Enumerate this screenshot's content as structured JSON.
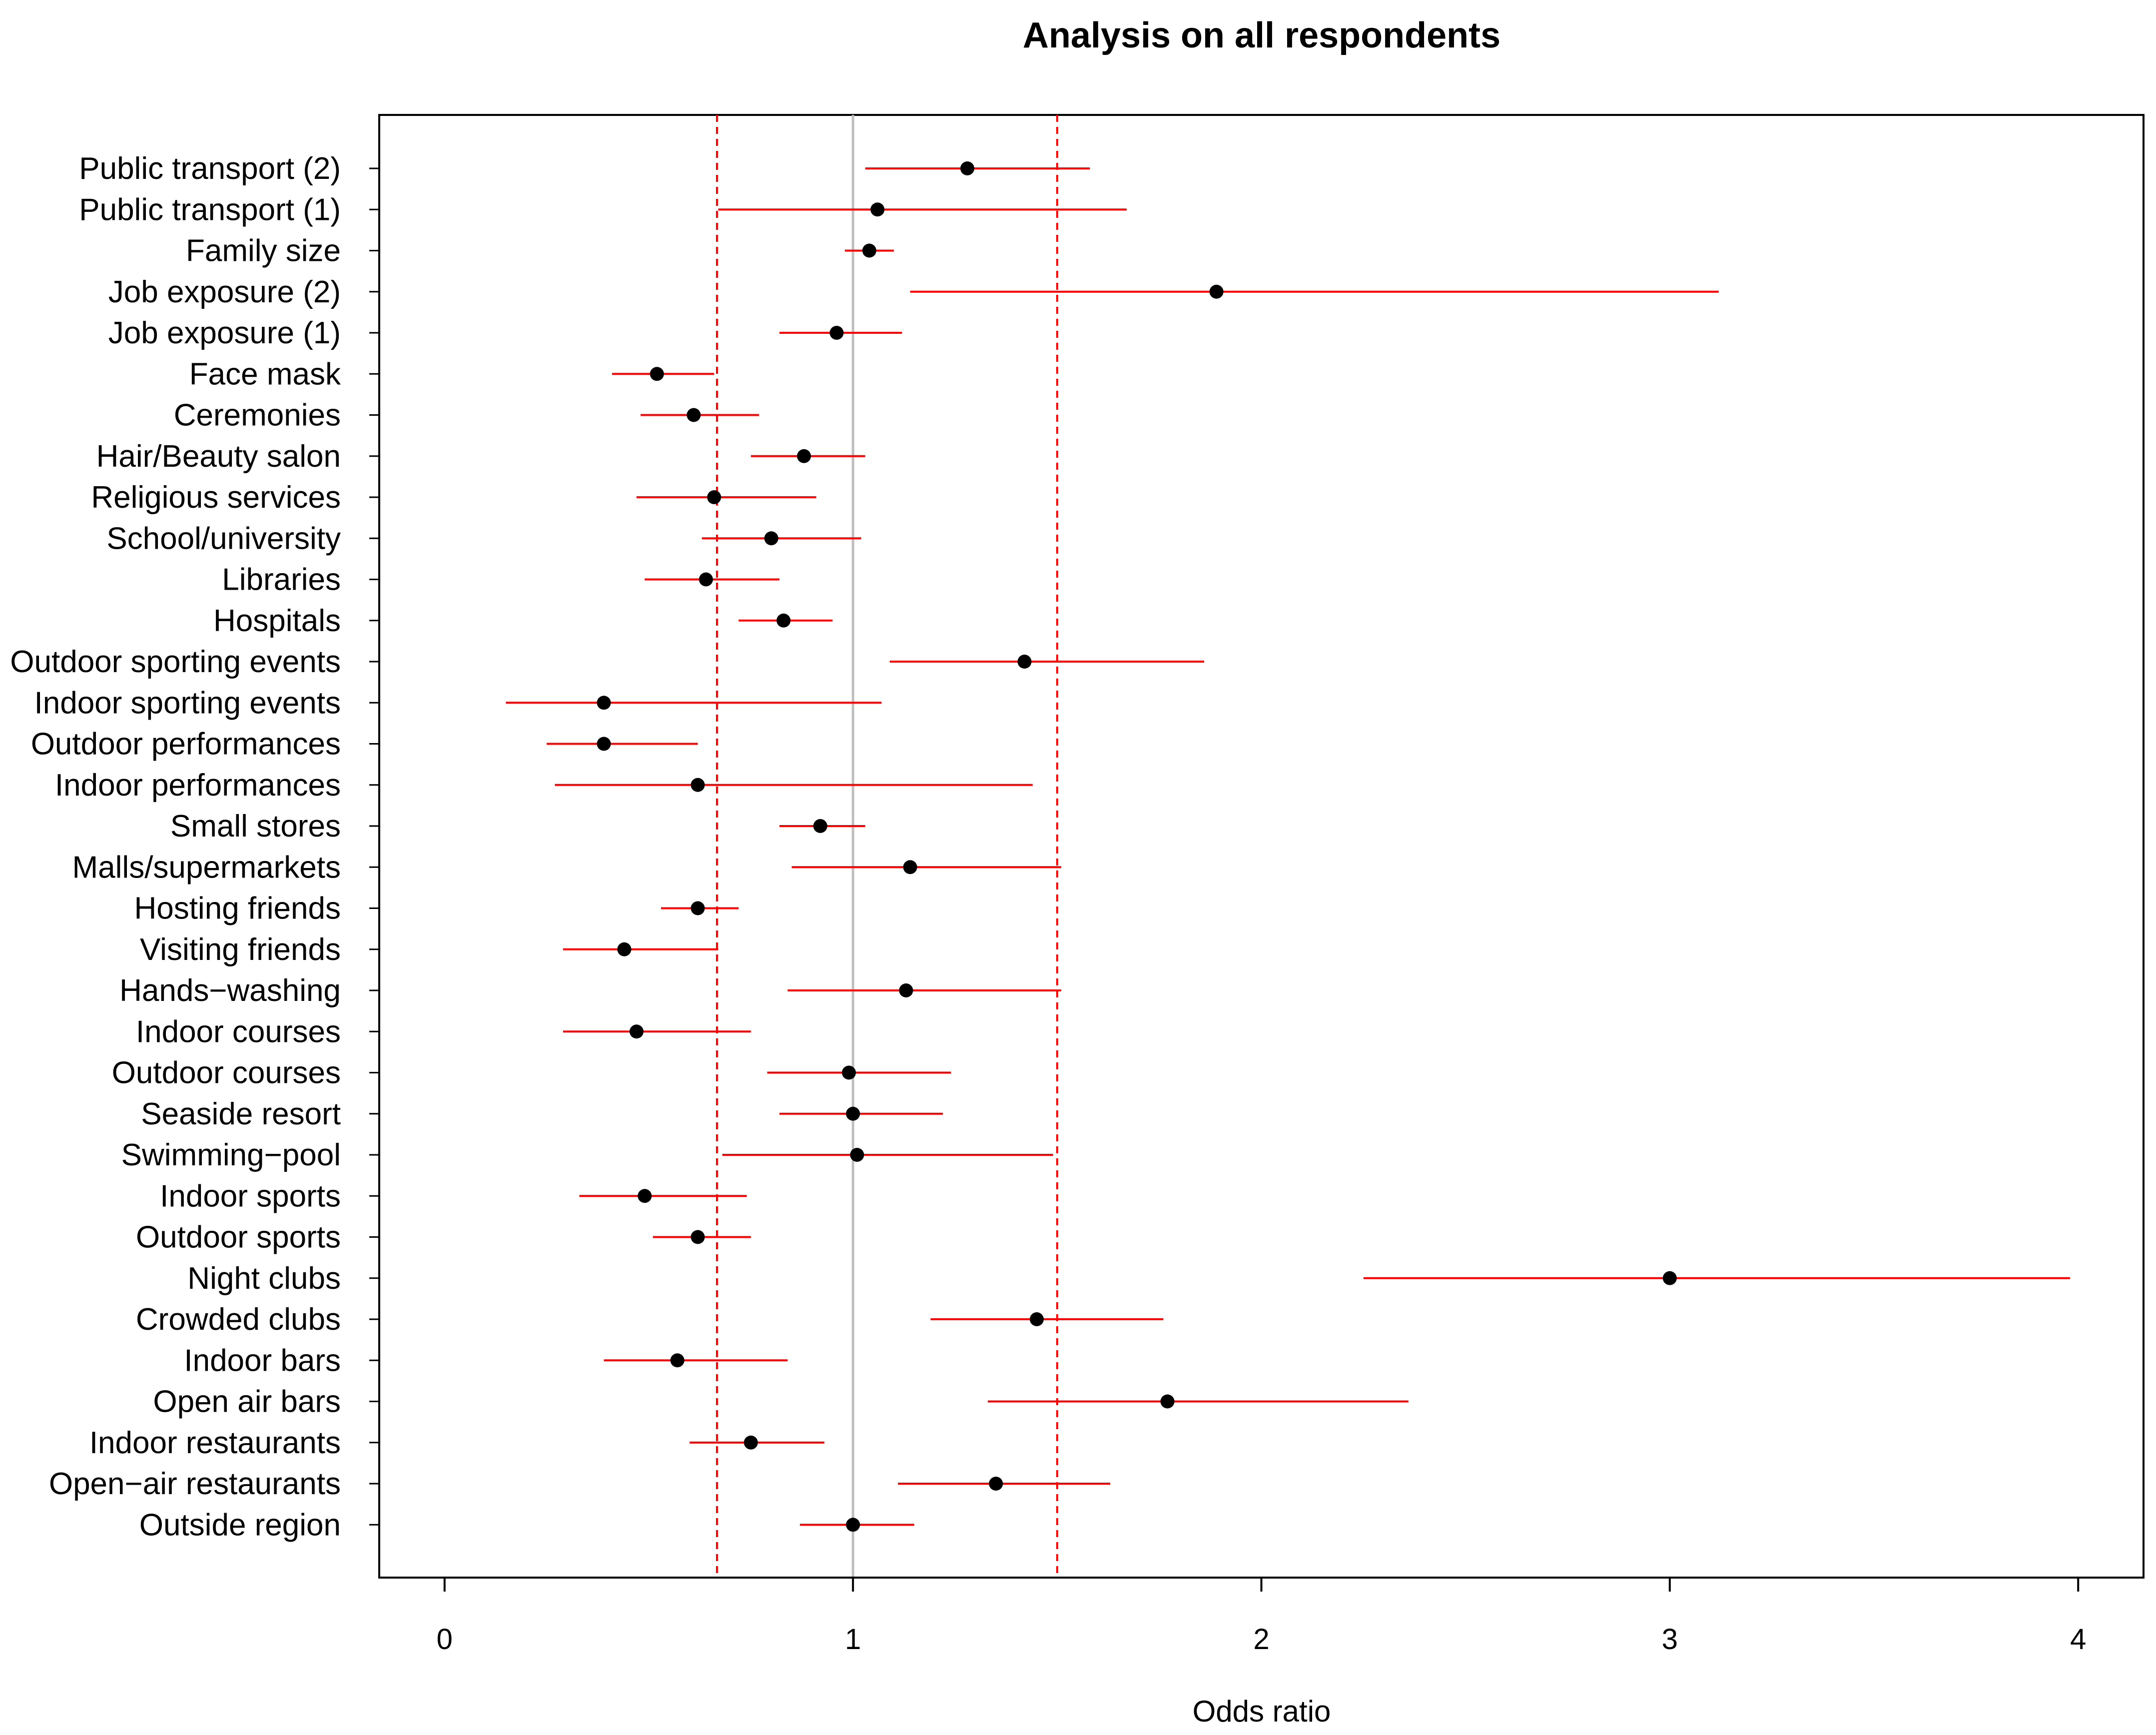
{
  "colors": {
    "ci_line": "#ff0000",
    "point": "#000000",
    "reference_line": "#bebebe",
    "threshold_line": "#ff0000",
    "frame": "#000000"
  },
  "chart_data": {
    "type": "forest",
    "title": "Analysis on all respondents",
    "xlabel": "Odds ratio",
    "ylabel": "",
    "xlim": [
      -0.16,
      4.16
    ],
    "xticks": [
      0,
      1,
      2,
      3,
      4
    ],
    "xtick_labels": [
      "0",
      "1",
      "2",
      "3",
      "4"
    ],
    "reference_line": 1.0,
    "threshold_lines": [
      0.667,
      1.5
    ],
    "items": [
      {
        "label": "Public transport (2)",
        "or": 1.28,
        "lower": 1.03,
        "upper": 1.58
      },
      {
        "label": "Public transport (1)",
        "or": 1.06,
        "lower": 0.67,
        "upper": 1.67
      },
      {
        "label": "Family size",
        "or": 1.04,
        "lower": 0.98,
        "upper": 1.1
      },
      {
        "label": "Job exposure (2)",
        "or": 1.89,
        "lower": 1.14,
        "upper": 3.12
      },
      {
        "label": "Job exposure (1)",
        "or": 0.96,
        "lower": 0.82,
        "upper": 1.12
      },
      {
        "label": "Face mask",
        "or": 0.52,
        "lower": 0.41,
        "upper": 0.66
      },
      {
        "label": "Ceremonies",
        "or": 0.61,
        "lower": 0.48,
        "upper": 0.77
      },
      {
        "label": "Hair/Beauty salon",
        "or": 0.88,
        "lower": 0.75,
        "upper": 1.03
      },
      {
        "label": "Religious services",
        "or": 0.66,
        "lower": 0.47,
        "upper": 0.91
      },
      {
        "label": "School/university",
        "or": 0.8,
        "lower": 0.63,
        "upper": 1.02
      },
      {
        "label": "Libraries",
        "or": 0.64,
        "lower": 0.49,
        "upper": 0.82
      },
      {
        "label": "Hospitals",
        "or": 0.83,
        "lower": 0.72,
        "upper": 0.95
      },
      {
        "label": "Outdoor sporting events",
        "or": 1.42,
        "lower": 1.09,
        "upper": 1.86
      },
      {
        "label": "Indoor sporting events",
        "or": 0.39,
        "lower": 0.15,
        "upper": 1.07
      },
      {
        "label": "Outdoor performances",
        "or": 0.39,
        "lower": 0.25,
        "upper": 0.62
      },
      {
        "label": "Indoor performances",
        "or": 0.62,
        "lower": 0.27,
        "upper": 1.44
      },
      {
        "label": "Small stores",
        "or": 0.92,
        "lower": 0.82,
        "upper": 1.03
      },
      {
        "label": "Malls/supermarkets",
        "or": 1.14,
        "lower": 0.85,
        "upper": 1.51
      },
      {
        "label": "Hosting friends",
        "or": 0.62,
        "lower": 0.53,
        "upper": 0.72
      },
      {
        "label": "Visiting friends",
        "or": 0.44,
        "lower": 0.29,
        "upper": 0.67
      },
      {
        "label": "Hands−washing",
        "or": 1.13,
        "lower": 0.84,
        "upper": 1.51
      },
      {
        "label": "Indoor courses",
        "or": 0.47,
        "lower": 0.29,
        "upper": 0.75
      },
      {
        "label": "Outdoor courses",
        "or": 0.99,
        "lower": 0.79,
        "upper": 1.24
      },
      {
        "label": "Seaside resort",
        "or": 1.0,
        "lower": 0.82,
        "upper": 1.22
      },
      {
        "label": "Swimming−pool",
        "or": 1.01,
        "lower": 0.68,
        "upper": 1.49
      },
      {
        "label": "Indoor sports",
        "or": 0.49,
        "lower": 0.33,
        "upper": 0.74
      },
      {
        "label": "Outdoor sports",
        "or": 0.62,
        "lower": 0.51,
        "upper": 0.75
      },
      {
        "label": "Night clubs",
        "or": 3.0,
        "lower": 2.25,
        "upper": 3.98
      },
      {
        "label": "Crowded clubs",
        "or": 1.45,
        "lower": 1.19,
        "upper": 1.76
      },
      {
        "label": "Indoor bars",
        "or": 0.57,
        "lower": 0.39,
        "upper": 0.84
      },
      {
        "label": "Open air bars",
        "or": 1.77,
        "lower": 1.33,
        "upper": 2.36
      },
      {
        "label": "Indoor restaurants",
        "or": 0.75,
        "lower": 0.6,
        "upper": 0.93
      },
      {
        "label": "Open−air restaurants",
        "or": 1.35,
        "lower": 1.11,
        "upper": 1.63
      },
      {
        "label": "Outside region",
        "or": 1.0,
        "lower": 0.87,
        "upper": 1.15
      }
    ]
  }
}
